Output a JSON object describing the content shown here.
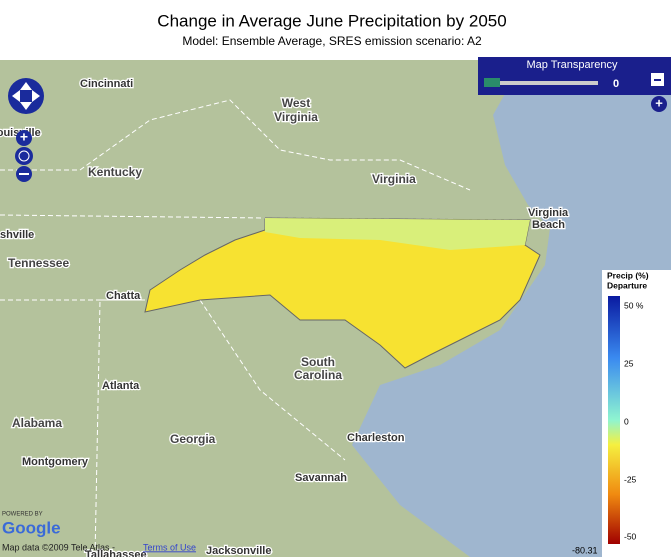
{
  "header": {
    "title": "Change in Average June Precipitation by 2050",
    "subtitle": "Model: Ensemble Average, SRES emission scenario: A2"
  },
  "transparency": {
    "title": "Map Transparency",
    "value": "0"
  },
  "places": [
    "Cincinnati",
    "Louisville",
    "West",
    "Virginia",
    "Kentucky",
    "Virginia",
    "Virginia",
    "Beach",
    "Nashville",
    "Tennessee",
    "Chatta",
    "South",
    "Carolina",
    "Atlanta",
    "Alabama",
    "Georgia",
    "Charleston",
    "Montgomery",
    "Savannah",
    "Jacksonville",
    "Tallahassee"
  ],
  "legend": {
    "title": "Precip (%)",
    "subtitle": "Departure",
    "ticks": [
      "50 %",
      "25",
      "0",
      "-25",
      "-50"
    ]
  },
  "footer": {
    "powered": "POWERED BY",
    "brand": "Google",
    "attribution": "Map data ©2009 Tele Atlas -",
    "terms": "Terms of Use",
    "coordinate": "-80.31"
  }
}
